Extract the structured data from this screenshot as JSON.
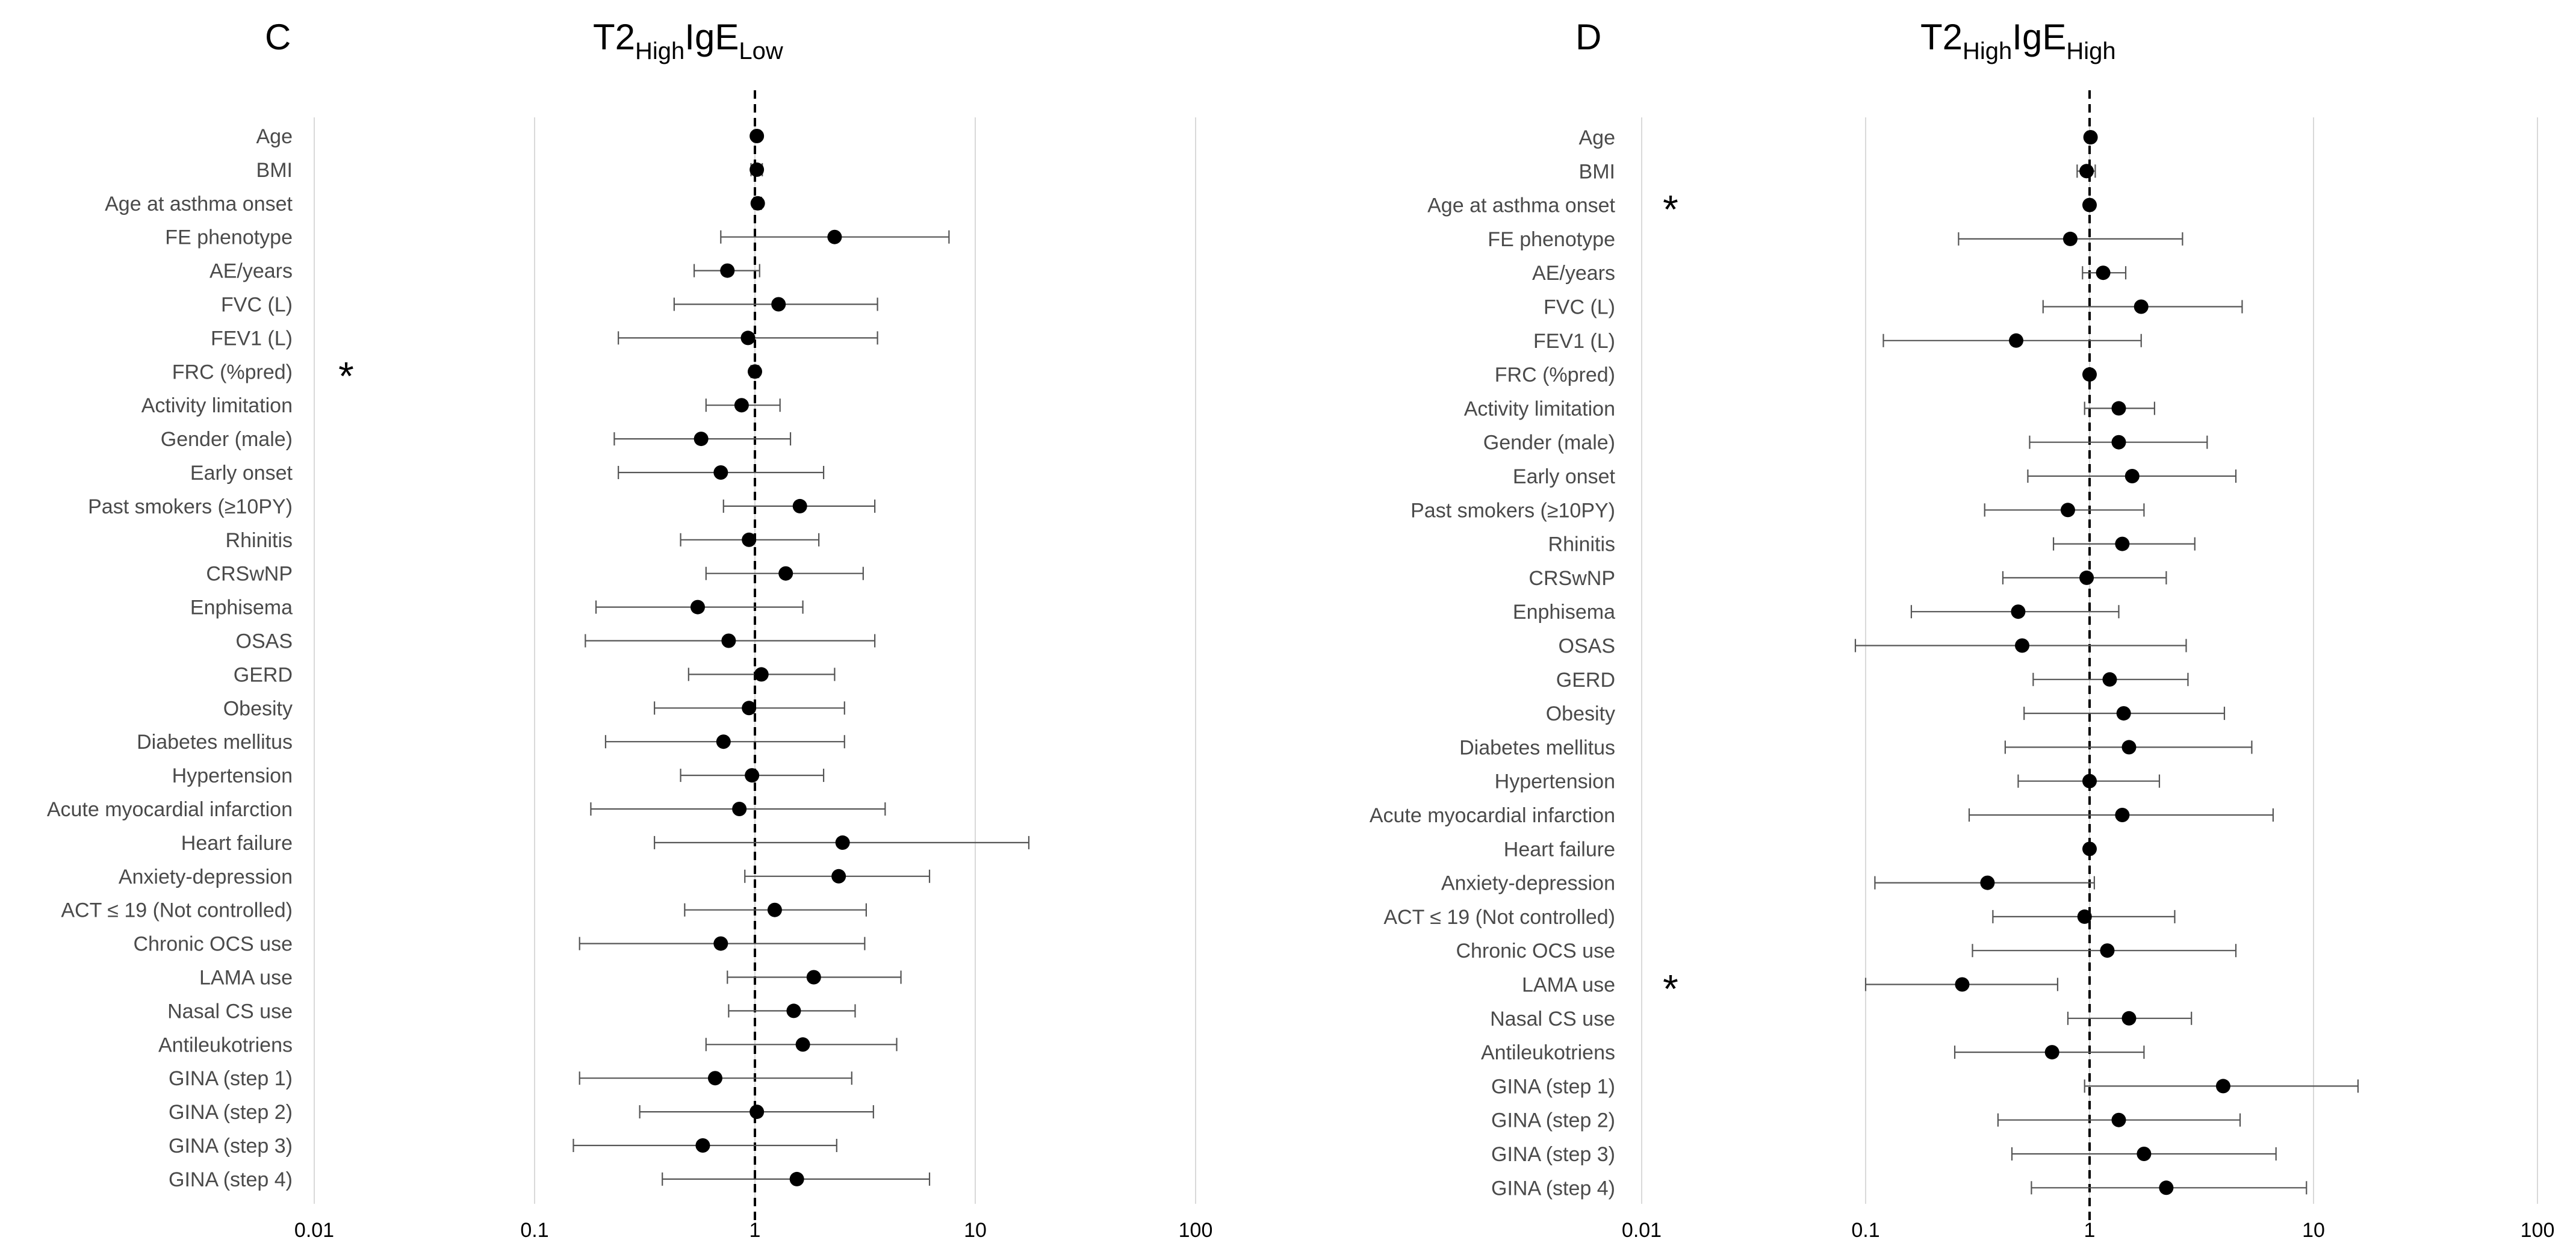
{
  "chart_data": [
    {
      "type": "forest",
      "panel_label": "C",
      "title": {
        "base": "T2",
        "sub1": "High",
        "mid": "IgE",
        "sub2": "Low"
      },
      "x_scale": "log",
      "xlim": [
        0.01,
        100
      ],
      "x_ticks": [
        "0.01",
        "0.1",
        "1",
        "10",
        "100"
      ],
      "grid": "vertical",
      "reference_line": 1,
      "categories": [
        "Age",
        "BMI",
        "Age at asthma onset",
        "FE phenotype",
        "AE/years",
        "FVC (L)",
        "FEV1 (L)",
        "FRC (%pred)",
        "Activity limitation",
        "Gender (male)",
        "Early onset",
        "Past smokers (≥10PY)",
        "Rhinitis",
        "CRSwNP",
        "Enphisema",
        "OSAS",
        "GERD",
        "Obesity",
        "Diabetes mellitus",
        "Hypertension",
        "Acute myocardial infarction",
        "Heart failure",
        "Anxiety-depression",
        "ACT ≤ 19 (Not controlled)",
        "Chronic OCS use",
        "LAMA use",
        "Nasal CS use",
        "Antileukotriens",
        "GINA (step 1)",
        "GINA (step 2)",
        "GINA (step 3)",
        "GINA (step 4)"
      ],
      "estimate": [
        1.02,
        1.02,
        1.03,
        2.3,
        0.75,
        1.28,
        0.93,
        1.0,
        0.87,
        0.57,
        0.7,
        1.6,
        0.94,
        1.38,
        0.55,
        0.76,
        1.07,
        0.94,
        0.72,
        0.97,
        0.85,
        2.5,
        2.4,
        1.23,
        0.7,
        1.85,
        1.5,
        1.65,
        0.66,
        1.02,
        0.58,
        1.55
      ],
      "lower": [
        0.99,
        0.96,
        0.99,
        0.7,
        0.53,
        0.43,
        0.24,
        0.96,
        0.6,
        0.23,
        0.24,
        0.72,
        0.46,
        0.6,
        0.19,
        0.17,
        0.5,
        0.35,
        0.21,
        0.46,
        0.18,
        0.35,
        0.9,
        0.48,
        0.16,
        0.75,
        0.76,
        0.6,
        0.16,
        0.3,
        0.15,
        0.38
      ],
      "upper": [
        1.05,
        1.08,
        1.07,
        7.6,
        1.05,
        3.6,
        3.6,
        1.04,
        1.3,
        1.45,
        2.05,
        3.5,
        1.95,
        3.1,
        1.65,
        3.5,
        2.3,
        2.55,
        2.55,
        2.05,
        3.9,
        17.5,
        6.2,
        3.2,
        3.15,
        4.6,
        2.85,
        4.4,
        2.75,
        3.45,
        2.35,
        6.2
      ]
    },
    {
      "type": "forest",
      "panel_label": "D",
      "title": {
        "base": "T2",
        "sub1": "High",
        "mid": "IgE",
        "sub2": "High"
      },
      "x_scale": "log",
      "xlim": [
        0.01,
        100
      ],
      "x_ticks": [
        "0.01",
        "0.1",
        "1",
        "10",
        "100"
      ],
      "grid": "vertical",
      "reference_line": 1,
      "categories": [
        "Age",
        "BMI",
        "Age at asthma onset",
        "FE phenotype",
        "AE/years",
        "FVC (L)",
        "FEV1 (L)",
        "FRC (%pred)",
        "Activity limitation",
        "Gender (male)",
        "Early onset",
        "Past smokers (≥10PY)",
        "Rhinitis",
        "CRSwNP",
        "Enphisema",
        "OSAS",
        "GERD",
        "Obesity",
        "Diabetes mellitus",
        "Hypertension",
        "Acute myocardial infarction",
        "Heart failure",
        "Anxiety-depression",
        "ACT ≤ 19 (Not controlled)",
        "Chronic OCS use",
        "LAMA use",
        "Nasal CS use",
        "Antileukotriens",
        "GINA (step 1)",
        "GINA (step 2)",
        "GINA (step 3)",
        "GINA (step 4)"
      ],
      "estimate": [
        1.01,
        0.97,
        1.0,
        0.82,
        1.15,
        1.7,
        0.47,
        1.0,
        1.35,
        1.35,
        1.55,
        0.8,
        1.4,
        0.97,
        0.48,
        0.5,
        1.23,
        1.42,
        1.5,
        1.0,
        1.4,
        1.0,
        0.35,
        0.95,
        1.2,
        0.27,
        1.5,
        0.68,
        3.95,
        1.35,
        1.75,
        2.2
      ],
      "lower": [
        0.98,
        0.88,
        0.98,
        0.26,
        0.93,
        0.62,
        0.12,
        0.98,
        0.95,
        0.54,
        0.53,
        0.34,
        0.69,
        0.41,
        0.16,
        0.09,
        0.56,
        0.51,
        0.42,
        0.48,
        0.29,
        0.98,
        0.11,
        0.37,
        0.3,
        0.1,
        0.8,
        0.25,
        0.95,
        0.39,
        0.45,
        0.55
      ],
      "upper": [
        1.04,
        1.06,
        1.03,
        2.6,
        1.45,
        4.8,
        1.7,
        1.02,
        1.95,
        3.35,
        4.5,
        1.75,
        2.95,
        2.2,
        1.35,
        2.7,
        2.75,
        4.0,
        5.3,
        2.05,
        6.6,
        1.03,
        1.05,
        2.4,
        4.5,
        0.72,
        2.85,
        1.75,
        15.8,
        4.7,
        6.8,
        9.3
      ]
    }
  ],
  "significance_markers": [
    {
      "panel": "C",
      "row": "FRC (%pred)",
      "symbol": "*"
    },
    {
      "panel": "D",
      "row": "Age at asthma onset",
      "symbol": "*"
    },
    {
      "panel": "D",
      "row": "LAMA use",
      "symbol": "*"
    }
  ]
}
